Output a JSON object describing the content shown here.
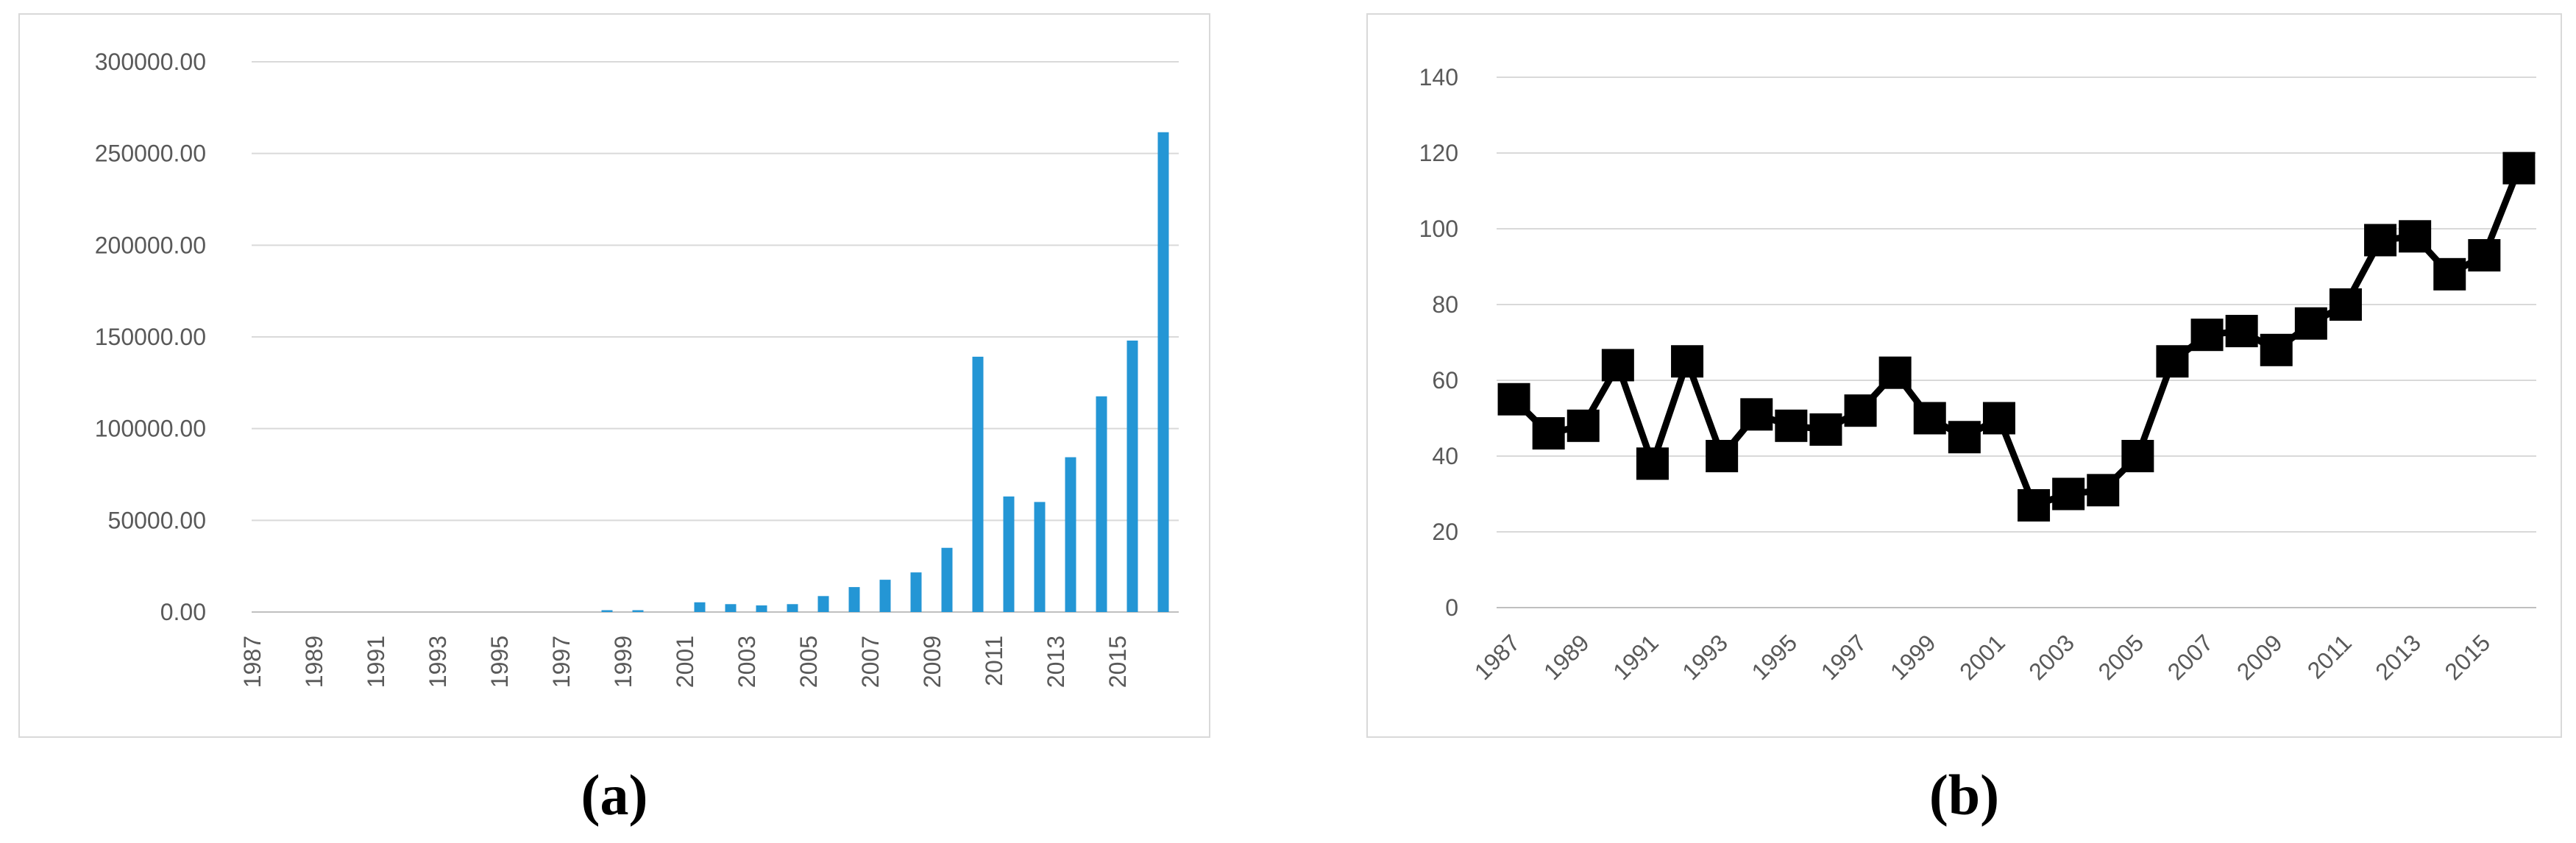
{
  "figure": {
    "panels": [
      {
        "id": "a",
        "caption": "(a)"
      },
      {
        "id": "b",
        "caption": "(b)"
      }
    ]
  },
  "styles": {
    "tick_label_color": "#595959",
    "gridline_color": "#D9D9D9",
    "axis_line_color": "#BFBFBF",
    "panel_border_color": "#D9D9D9",
    "bar_color": "#2496D5",
    "line_color": "#000000"
  },
  "chart_data": [
    {
      "type": "bar",
      "panel": "(a)",
      "title": "",
      "xlabel": "",
      "ylabel": "",
      "categories": [
        "1987",
        "1988",
        "1989",
        "1990",
        "1991",
        "1992",
        "1993",
        "1994",
        "1995",
        "1996",
        "1997",
        "1998",
        "1999",
        "2000",
        "2001",
        "2002",
        "2003",
        "2004",
        "2005",
        "2006",
        "2007",
        "2008",
        "2009",
        "2010",
        "2011",
        "2012",
        "2013",
        "2014",
        "2015",
        "2016"
      ],
      "values": [
        0,
        0,
        0,
        0,
        0,
        0,
        0,
        0,
        0,
        0,
        0,
        1000,
        1000,
        0,
        5300,
        4300,
        3600,
        4300,
        8700,
        13600,
        17600,
        21600,
        35000,
        139200,
        63000,
        60000,
        84400,
        117600,
        148000,
        261600
      ],
      "x_tick_labels": [
        "1987",
        "1989",
        "1991",
        "1993",
        "1995",
        "1997",
        "1999",
        "2001",
        "2003",
        "2005",
        "2007",
        "2009",
        "2011",
        "2013",
        "2015"
      ],
      "y_tick_labels": [
        "300000.00",
        "250000.00",
        "200000.00",
        "150000.00",
        "100000.00",
        "50000.00",
        "0.00"
      ],
      "y_tick_values": [
        300000,
        250000,
        200000,
        150000,
        100000,
        50000,
        0
      ],
      "ylim": [
        0,
        300000
      ],
      "grid": true,
      "legend": false,
      "bar_color": "#2496D5"
    },
    {
      "type": "line",
      "panel": "(b)",
      "title": "",
      "xlabel": "",
      "ylabel": "",
      "categories": [
        "1987",
        "1988",
        "1989",
        "1990",
        "1991",
        "1992",
        "1993",
        "1994",
        "1995",
        "1996",
        "1997",
        "1998",
        "1999",
        "2000",
        "2001",
        "2002",
        "2003",
        "2004",
        "2005",
        "2006",
        "2007",
        "2008",
        "2009",
        "2010",
        "2011",
        "2012",
        "2013",
        "2014",
        "2015",
        "2016"
      ],
      "values": [
        55,
        46,
        48,
        64,
        38,
        65,
        40,
        51,
        48,
        47,
        52,
        62,
        50,
        45,
        50,
        27,
        30,
        31,
        40,
        65,
        72,
        73,
        68,
        75,
        80,
        97,
        98,
        88,
        93,
        116
      ],
      "x_tick_labels": [
        "1987",
        "1989",
        "1991",
        "1993",
        "1995",
        "1997",
        "1999",
        "2001",
        "2003",
        "2005",
        "2007",
        "2009",
        "2011",
        "2013",
        "2015"
      ],
      "y_tick_labels": [
        "140",
        "120",
        "100",
        "80",
        "60",
        "40",
        "20",
        "0"
      ],
      "y_tick_values": [
        140,
        120,
        100,
        80,
        60,
        40,
        20,
        0
      ],
      "ylim": [
        0,
        140
      ],
      "grid": true,
      "legend": false,
      "marker": "square",
      "line_color": "#000000"
    }
  ]
}
